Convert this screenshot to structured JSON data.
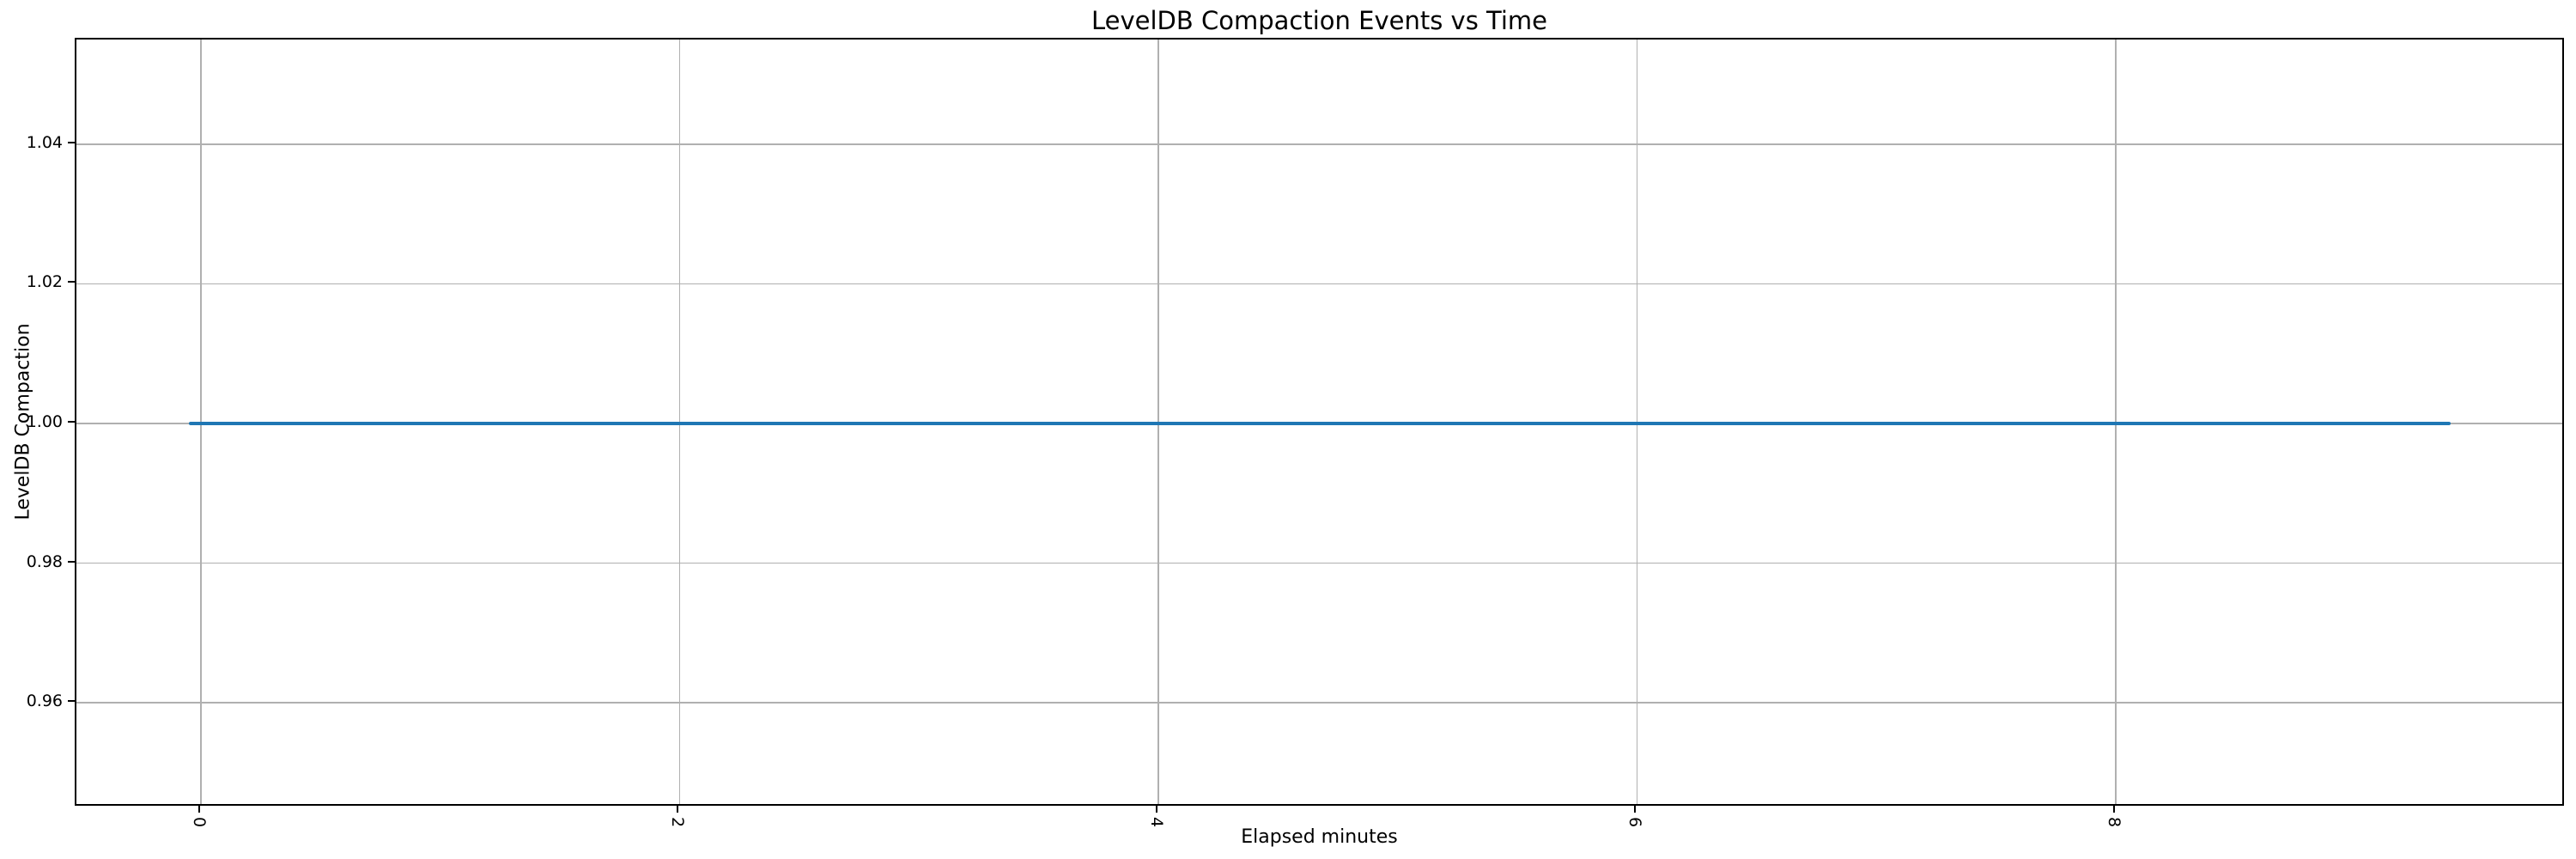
{
  "chart_data": {
    "type": "line",
    "title": "LevelDB Compaction Events vs Time",
    "xlabel": "Elapsed minutes",
    "ylabel": "LevelDB Compaction",
    "grid": true,
    "legend": false,
    "xlim": [
      -0.52,
      9.88
    ],
    "ylim": [
      0.945,
      1.055
    ],
    "x_ticks": [
      {
        "value": 0,
        "label": "0"
      },
      {
        "value": 2,
        "label": "2"
      },
      {
        "value": 4,
        "label": "4"
      },
      {
        "value": 6,
        "label": "6"
      },
      {
        "value": 8,
        "label": "8"
      }
    ],
    "x_tick_rotation_deg": 90,
    "y_ticks": [
      {
        "value": 0.96,
        "label": "0.96"
      },
      {
        "value": 0.98,
        "label": "0.98"
      },
      {
        "value": 1.0,
        "label": "1.00"
      },
      {
        "value": 1.02,
        "label": "1.02"
      },
      {
        "value": 1.04,
        "label": "1.04"
      }
    ],
    "series": [
      {
        "name": "LevelDB Compaction",
        "color": "#1f77b4",
        "x": [
          -0.05,
          9.4
        ],
        "y": [
          1.0,
          1.0
        ]
      }
    ],
    "colors": {
      "line": "#1f77b4",
      "grid": "#b0b0b0",
      "spine": "#000000",
      "text": "#000000",
      "background": "#ffffff"
    }
  }
}
